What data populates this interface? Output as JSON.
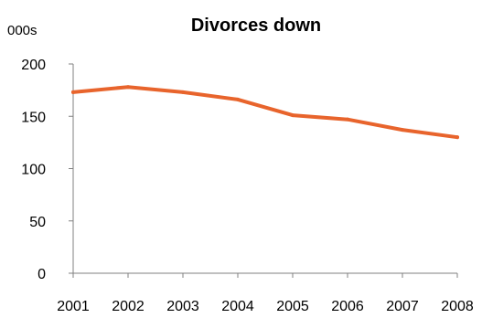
{
  "chart_data": {
    "type": "line",
    "title": "Divorces down",
    "ylabel": "000s",
    "xlabel": "",
    "x": [
      "2001",
      "2002",
      "2003",
      "2004",
      "2005",
      "2006",
      "2007",
      "2008"
    ],
    "series": [
      {
        "values": [
          173,
          178,
          173,
          166,
          151,
          147,
          137,
          130
        ],
        "color": "#E8642C"
      }
    ],
    "ylim": [
      0,
      200
    ],
    "yticks": [
      0,
      50,
      100,
      150,
      200
    ],
    "grid": false,
    "legend": "none"
  }
}
